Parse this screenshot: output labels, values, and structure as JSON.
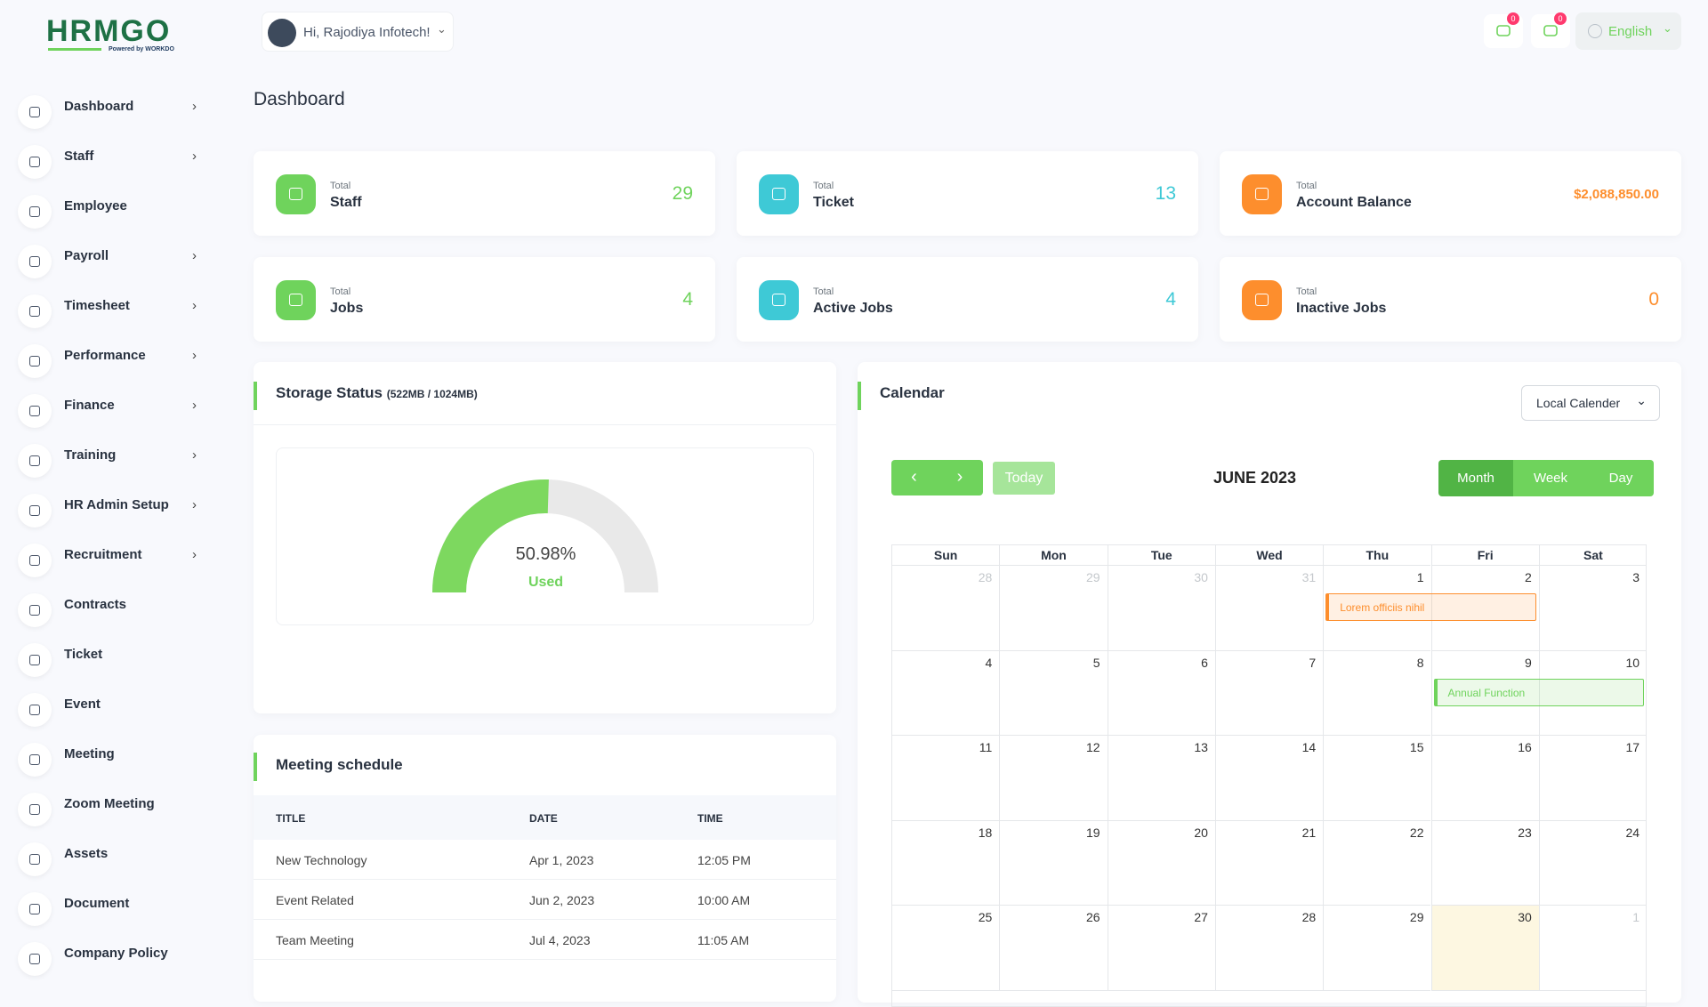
{
  "logo": {
    "title": "HRMGO",
    "tagline": "Powered by WORKDO"
  },
  "header": {
    "greeting": "Hi, Rajodiya Infotech!",
    "message_badge": "0",
    "notification_badge": "0",
    "language": "English"
  },
  "sidebar": {
    "items": [
      {
        "label": "Dashboard",
        "has_submenu": true
      },
      {
        "label": "Staff",
        "has_submenu": true
      },
      {
        "label": "Employee",
        "has_submenu": false
      },
      {
        "label": "Payroll",
        "has_submenu": true
      },
      {
        "label": "Timesheet",
        "has_submenu": true
      },
      {
        "label": "Performance",
        "has_submenu": true
      },
      {
        "label": "Finance",
        "has_submenu": true
      },
      {
        "label": "Training",
        "has_submenu": true
      },
      {
        "label": "HR Admin Setup",
        "has_submenu": true
      },
      {
        "label": "Recruitment",
        "has_submenu": true
      },
      {
        "label": "Contracts",
        "has_submenu": false
      },
      {
        "label": "Ticket",
        "has_submenu": false
      },
      {
        "label": "Event",
        "has_submenu": false
      },
      {
        "label": "Meeting",
        "has_submenu": false
      },
      {
        "label": "Zoom Meeting",
        "has_submenu": false
      },
      {
        "label": "Assets",
        "has_submenu": false
      },
      {
        "label": "Document",
        "has_submenu": false
      },
      {
        "label": "Company Policy",
        "has_submenu": false
      }
    ]
  },
  "page": {
    "title": "Dashboard"
  },
  "stats": [
    {
      "caption": "Total",
      "label": "Staff",
      "value": 29,
      "color": "#6fd35c"
    },
    {
      "caption": "Total",
      "label": "Ticket",
      "value": 13,
      "color": "#3ec9d6"
    },
    {
      "caption": "Total",
      "label": "Account Balance",
      "value": "$2,088,850.00",
      "color": "#fd8e2d"
    },
    {
      "caption": "Total",
      "label": "Jobs",
      "value": 4,
      "color": "#6fd35c"
    },
    {
      "caption": "Total",
      "label": "Active Jobs",
      "value": 4,
      "color": "#3ec9d6"
    },
    {
      "caption": "Total",
      "label": "Inactive Jobs",
      "value": 0,
      "color": "#fd8e2d"
    }
  ],
  "storage": {
    "title": "Storage Status",
    "subtitle": "(522MB / 1024MB)",
    "used_percent": 50.98,
    "used_percent_label": "50.98%",
    "used_label": "Used"
  },
  "meetings": {
    "title": "Meeting schedule",
    "columns": [
      "TITLE",
      "DATE",
      "TIME"
    ],
    "rows": [
      [
        "New Technology",
        "Apr 1, 2023",
        "12:05 PM"
      ],
      [
        "Event Related",
        "Jun 2, 2023",
        "10:00 AM"
      ],
      [
        "Team Meeting",
        "Jul 4, 2023",
        "11:05 AM"
      ]
    ]
  },
  "calendar": {
    "title": "Calendar",
    "source": "Local Calender",
    "today_button": "Today",
    "month": "JUNE 2023",
    "views": [
      "Month",
      "Week",
      "Day"
    ],
    "weekdays": [
      "Sun",
      "Mon",
      "Tue",
      "Wed",
      "Thu",
      "Fri",
      "Sat"
    ],
    "weeks": [
      [
        28,
        29,
        30,
        31,
        1,
        2,
        3
      ],
      [
        4,
        5,
        6,
        7,
        8,
        9,
        10
      ],
      [
        11,
        12,
        13,
        14,
        15,
        16,
        17
      ],
      [
        18,
        19,
        20,
        21,
        22,
        23,
        24
      ],
      [
        25,
        26,
        27,
        28,
        29,
        30,
        1
      ]
    ],
    "events": [
      {
        "title": "Lorem officiis nihil",
        "color": "#fd8e2d"
      },
      {
        "title": "Annual Function",
        "color": "#6fd35c"
      }
    ]
  }
}
